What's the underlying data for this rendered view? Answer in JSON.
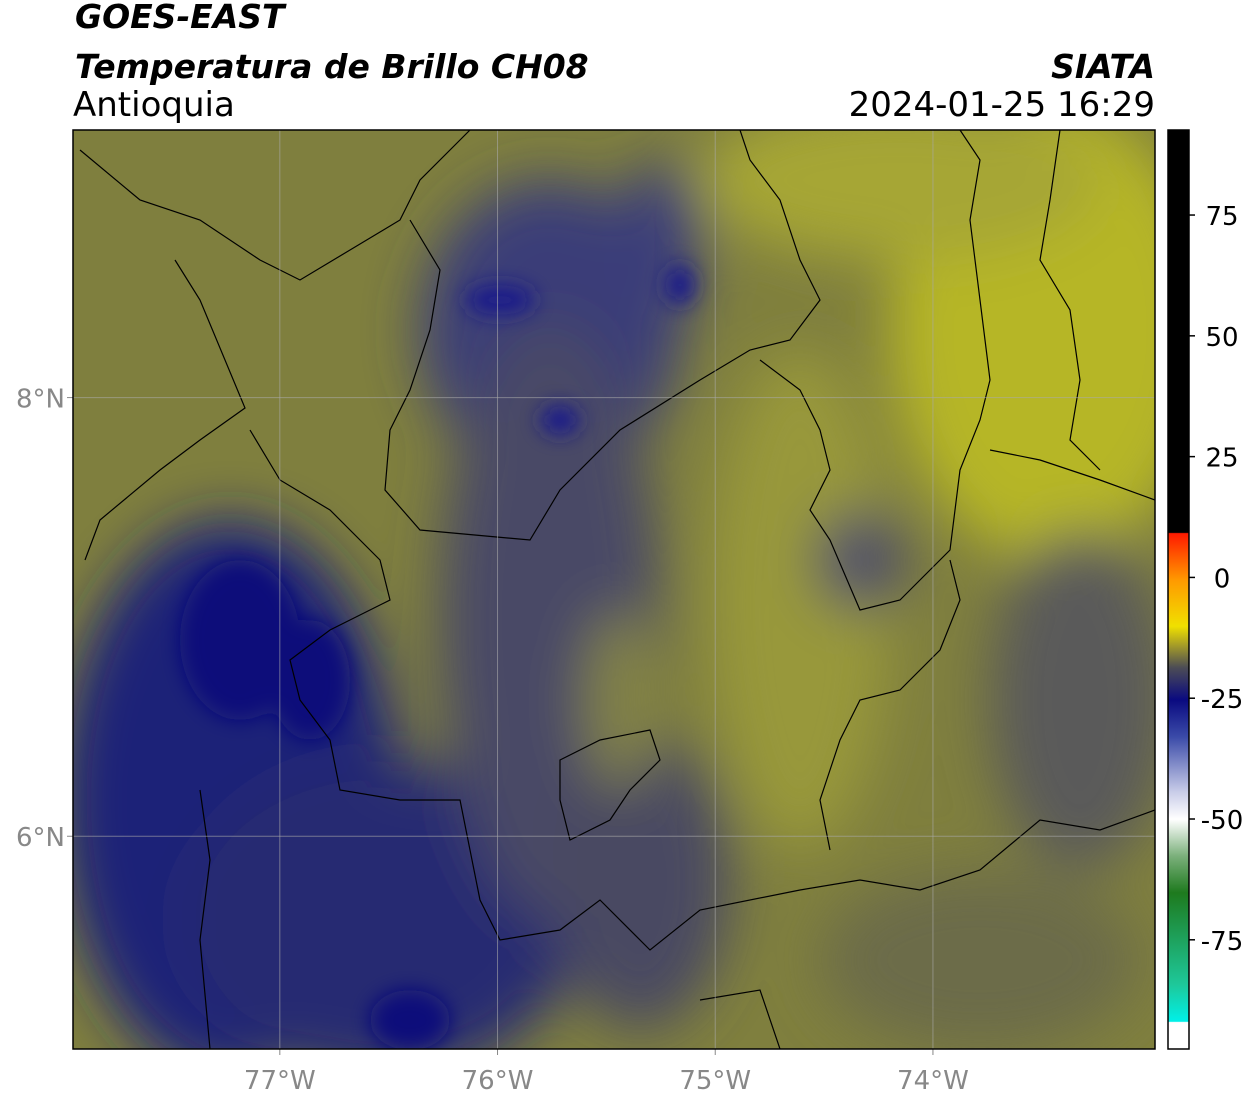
{
  "header": {
    "satellite": "GOES-EAST",
    "product": "Temperatura de Brillo CH08",
    "region": "Antioquia",
    "source": "SIATA",
    "datetime": "2024-01-25 16:29"
  },
  "map": {
    "lon_range": [
      -77.95,
      -72.98
    ],
    "lat_range": [
      5.03,
      9.22
    ],
    "lon_ticks": [
      {
        "value": -77,
        "label": "77°W"
      },
      {
        "value": -76,
        "label": "76°W"
      },
      {
        "value": -75,
        "label": "75°W"
      },
      {
        "value": -74,
        "label": "74°W"
      }
    ],
    "lat_ticks": [
      {
        "value": 8,
        "label": "8°N"
      },
      {
        "value": 6,
        "label": "6°N"
      }
    ]
  },
  "colorbar": {
    "range": [
      -97.6,
      92.6
    ],
    "ticks": [
      75,
      50,
      25,
      0,
      -25,
      -50,
      -75
    ]
  }
}
